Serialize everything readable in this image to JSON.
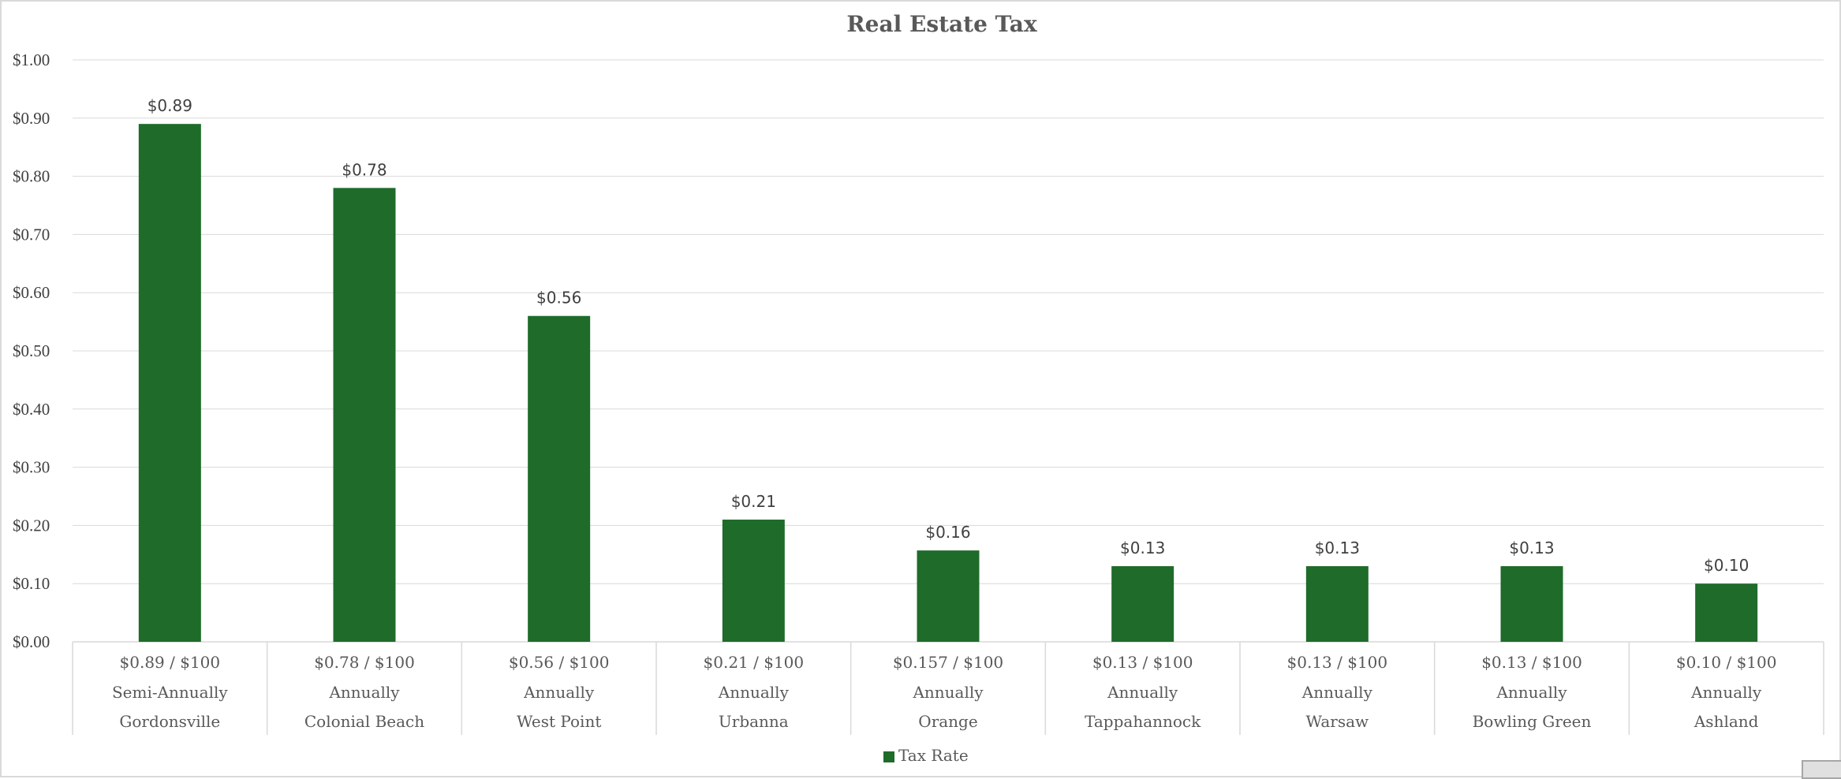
{
  "chart_data": {
    "type": "bar",
    "title": "Real Estate Tax",
    "xlabel": "",
    "ylabel": "",
    "ylim": [
      0,
      1.0
    ],
    "y_ticks": [
      "$0.00",
      "$0.10",
      "$0.20",
      "$0.30",
      "$0.40",
      "$0.50",
      "$0.60",
      "$0.70",
      "$0.80",
      "$0.90",
      "$1.00"
    ],
    "grid": true,
    "legend_position": "bottom",
    "bar_color": "#1e6b2a",
    "categories": [
      {
        "rate": "$0.89 / $100",
        "frequency": "Semi-Annually",
        "town": "Gordonsville"
      },
      {
        "rate": "$0.78 / $100",
        "frequency": "Annually",
        "town": "Colonial Beach"
      },
      {
        "rate": "$0.56 / $100",
        "frequency": "Annually",
        "town": "West Point"
      },
      {
        "rate": "$0.21 / $100",
        "frequency": "Annually",
        "town": "Urbanna"
      },
      {
        "rate": "$0.157 / $100",
        "frequency": "Annually",
        "town": "Orange"
      },
      {
        "rate": "$0.13 / $100",
        "frequency": "Annually",
        "town": "Tappahannock"
      },
      {
        "rate": "$0.13 / $100",
        "frequency": "Annually",
        "town": "Warsaw"
      },
      {
        "rate": "$0.13 / $100",
        "frequency": "Annually",
        "town": "Bowling Green"
      },
      {
        "rate": "$0.10 / $100",
        "frequency": "Annually",
        "town": "Ashland"
      }
    ],
    "series": [
      {
        "name": "Tax Rate",
        "values": [
          0.89,
          0.78,
          0.56,
          0.21,
          0.157,
          0.13,
          0.13,
          0.13,
          0.1
        ],
        "data_labels": [
          "$0.89",
          "$0.78",
          "$0.56",
          "$0.21",
          "$0.16",
          "$0.13",
          "$0.13",
          "$0.13",
          "$0.10"
        ]
      }
    ]
  }
}
